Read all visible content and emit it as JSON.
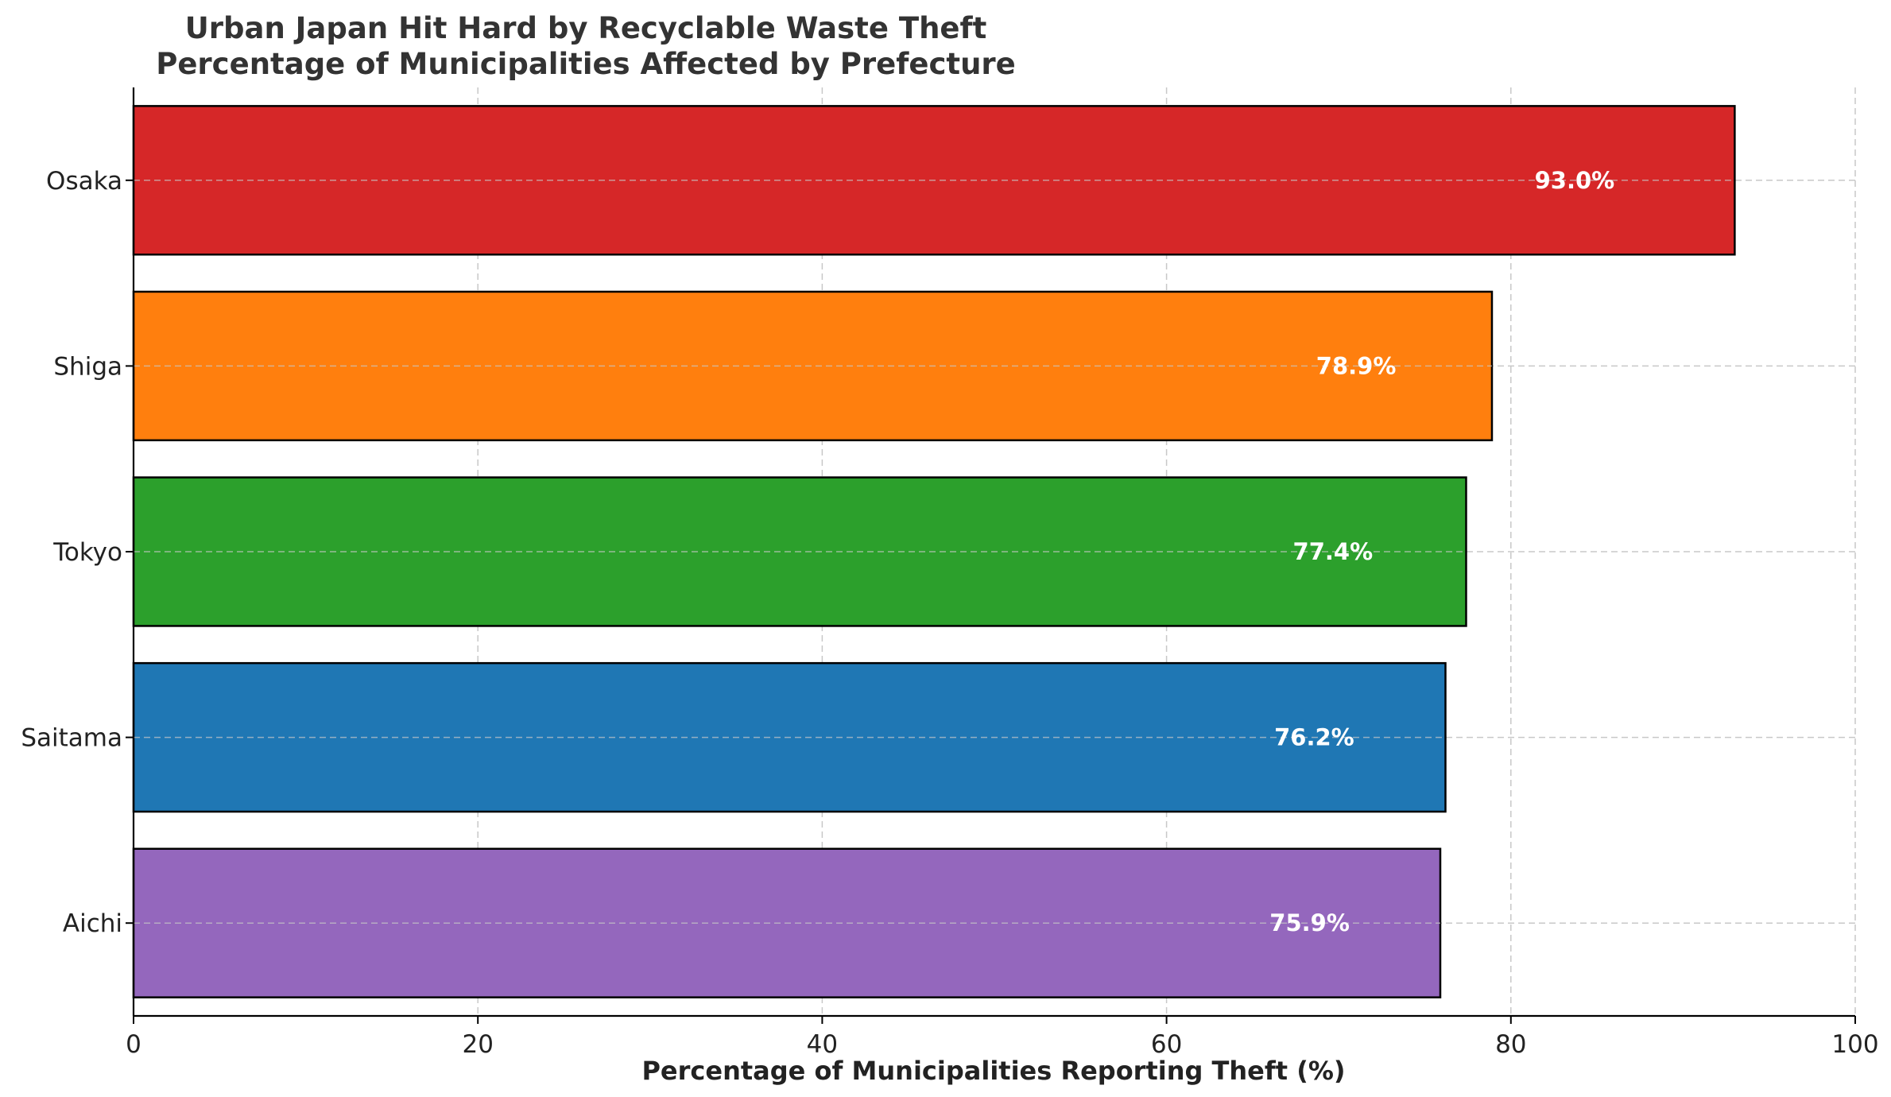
{
  "chart_data": {
    "type": "bar",
    "orientation": "horizontal",
    "title_line1": "Urban Japan Hit Hard by Recyclable Waste Theft",
    "title_line2": "Percentage of Municipalities Affected by Prefecture",
    "xlabel": "Percentage of Municipalities Reporting Theft (%)",
    "ylabel": "",
    "xlim": [
      0,
      100
    ],
    "xticks": [
      0,
      20,
      40,
      60,
      80,
      100
    ],
    "grid": true,
    "categories": [
      "Osaka",
      "Shiga",
      "Tokyo",
      "Saitama",
      "Aichi"
    ],
    "values": [
      93.0,
      78.9,
      77.4,
      76.2,
      75.9
    ],
    "data_labels": [
      "93.0%",
      "78.9%",
      "77.4%",
      "76.2%",
      "75.9%"
    ],
    "colors": [
      "#d62728",
      "#ff7f0e",
      "#2ca02c",
      "#1f77b4",
      "#9467bd"
    ]
  }
}
